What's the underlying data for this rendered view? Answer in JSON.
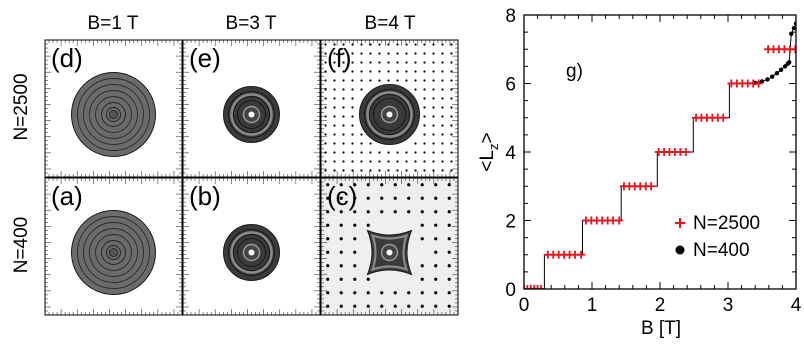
{
  "figure": {
    "column_headers": [
      "B=1 T",
      "B=3 T",
      "B=4 T"
    ],
    "row_headers": [
      "N=2500",
      "N=400"
    ],
    "panels": [
      {
        "label": "(d)",
        "row": 0,
        "col": 0,
        "style": "smooth",
        "lattice": "none"
      },
      {
        "label": "(e)",
        "row": 0,
        "col": 1,
        "style": "ring",
        "lattice": "none"
      },
      {
        "label": "(f)",
        "row": 0,
        "col": 2,
        "style": "ring",
        "lattice": "dense"
      },
      {
        "label": "(a)",
        "row": 1,
        "col": 0,
        "style": "smooth",
        "lattice": "none"
      },
      {
        "label": "(b)",
        "row": 1,
        "col": 1,
        "style": "ring",
        "lattice": "none"
      },
      {
        "label": "(c)",
        "row": 1,
        "col": 2,
        "style": "square",
        "lattice": "sparse"
      }
    ],
    "colors": {
      "cloud_fill": "#6b6b6b",
      "cloud_dark": "#3a3a3a",
      "contour": "#1a1a1a",
      "vortex_dot": "#000000",
      "shaded_bg": "#efefef",
      "marker_red": "#e8101a",
      "line_black": "#000000"
    }
  },
  "chart_data": {
    "type": "line",
    "annotation": "g)",
    "xlabel": "B [T]",
    "ylabel": "<L_z>",
    "xlim": [
      0,
      4
    ],
    "ylim": [
      0,
      8
    ],
    "xticks": [
      0,
      1,
      2,
      3,
      4
    ],
    "yticks": [
      0,
      2,
      4,
      6,
      8
    ],
    "legend_position": "bottom-right",
    "series": [
      {
        "name": "N=2500",
        "marker": "plus",
        "color": "#e8101a",
        "x": [
          0.0,
          0.05,
          0.1,
          0.15,
          0.2,
          0.25,
          0.35,
          0.43,
          0.51,
          0.59,
          0.67,
          0.75,
          0.84,
          0.91,
          0.99,
          1.07,
          1.15,
          1.23,
          1.31,
          1.4,
          1.47,
          1.55,
          1.63,
          1.71,
          1.79,
          1.87,
          1.98,
          2.06,
          2.14,
          2.22,
          2.3,
          2.38,
          2.53,
          2.61,
          2.69,
          2.77,
          2.85,
          2.93,
          3.05,
          3.13,
          3.21,
          3.29,
          3.37,
          3.45,
          3.59,
          3.67,
          3.75,
          3.83,
          3.91,
          3.99
        ],
        "y": [
          0,
          0,
          0,
          0,
          0,
          0,
          1,
          1,
          1,
          1,
          1,
          1,
          1,
          2,
          2,
          2,
          2,
          2,
          2,
          2,
          3,
          3,
          3,
          3,
          3,
          3,
          4,
          4,
          4,
          4,
          4,
          4,
          5,
          5,
          5,
          5,
          5,
          5,
          6,
          6,
          6,
          6,
          6,
          6,
          7,
          7,
          7,
          7,
          7,
          7
        ]
      },
      {
        "name": "N=400",
        "marker": "dot",
        "color": "#000000",
        "x": [
          0.0,
          0.3,
          0.3,
          0.86,
          0.86,
          1.43,
          1.43,
          1.96,
          1.96,
          2.49,
          2.49,
          3.02,
          3.02,
          3.4,
          3.5,
          3.58,
          3.65,
          3.72,
          3.78,
          3.84,
          3.88,
          3.9,
          3.93,
          3.97,
          4.0
        ],
        "y": [
          0.0,
          0.0,
          1.0,
          1.0,
          2.0,
          2.0,
          3.0,
          3.0,
          4.0,
          4.0,
          5.0,
          5.0,
          6.0,
          6.02,
          6.06,
          6.12,
          6.2,
          6.3,
          6.4,
          6.5,
          6.58,
          6.62,
          7.45,
          7.62,
          7.75
        ]
      }
    ]
  }
}
